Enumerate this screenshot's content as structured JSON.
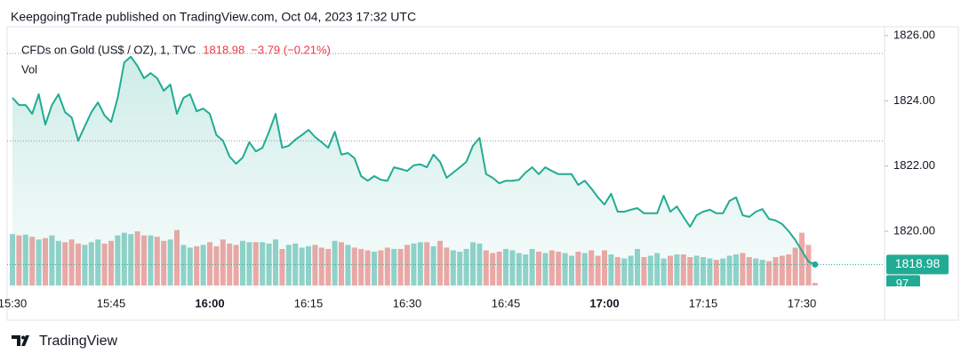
{
  "header": "KeepgoingTrade published on TradingView.com, Oct 04, 2023 17:32 UTC",
  "footer": "TradingView",
  "chart_data": {
    "type": "line",
    "title": "CFDs on Gold (US$ / OZ), 1, TVC",
    "change": "−3.79 (−0.21%)",
    "categories": [
      "15:30",
      null,
      null,
      null,
      null,
      null,
      null,
      null,
      null,
      null,
      null,
      null,
      null,
      null,
      null,
      "15:45",
      null,
      null,
      null,
      null,
      null,
      null,
      null,
      null,
      null,
      null,
      null,
      null,
      null,
      null,
      "16:00",
      null,
      null,
      null,
      null,
      null,
      null,
      null,
      null,
      null,
      null,
      null,
      null,
      null,
      null,
      "16:15",
      null,
      null,
      null,
      null,
      null,
      null,
      null,
      null,
      null,
      null,
      null,
      null,
      null,
      null,
      "16:30",
      null,
      null,
      null,
      null,
      null,
      null,
      null,
      null,
      null,
      null,
      null,
      null,
      null,
      null,
      "16:45",
      null,
      null,
      null,
      null,
      null,
      null,
      null,
      null,
      null,
      null,
      null,
      null,
      null,
      null,
      "17:00",
      null,
      null,
      null,
      null,
      null,
      null,
      null,
      null,
      null,
      null,
      null,
      null,
      null,
      null,
      "17:15",
      null,
      null,
      null,
      null,
      null,
      null,
      null,
      null,
      null,
      null,
      null,
      null,
      null,
      null,
      "17:30",
      null,
      null
    ],
    "series": [
      {
        "name": "CFDs on Gold (US$ / OZ)",
        "color": "#22ab94",
        "values": [
          1824.09,
          1823.87,
          1823.87,
          1823.6,
          1824.2,
          1823.27,
          1823.87,
          1824.2,
          1823.65,
          1823.49,
          1822.78,
          1823.22,
          1823.65,
          1823.95,
          1823.55,
          1823.35,
          1824.09,
          1825.18,
          1825.35,
          1825.07,
          1824.69,
          1824.85,
          1824.69,
          1824.31,
          1824.5,
          1823.6,
          1824.09,
          1824.2,
          1823.68,
          1823.76,
          1823.6,
          1822.95,
          1822.78,
          1822.29,
          1822.07,
          1822.26,
          1822.73,
          1822.45,
          1822.56,
          1823.05,
          1823.6,
          1822.56,
          1822.62,
          1822.81,
          1822.95,
          1823.11,
          1822.89,
          1822.73,
          1822.56,
          1823.05,
          1822.35,
          1822.4,
          1822.24,
          1821.69,
          1821.55,
          1821.69,
          1821.58,
          1821.55,
          1821.96,
          1821.91,
          1821.85,
          1822.02,
          1822.05,
          1821.96,
          1822.35,
          1822.13,
          1821.64,
          1821.8,
          1821.96,
          1822.13,
          1822.62,
          1822.86,
          1821.75,
          1821.64,
          1821.47,
          1821.55,
          1821.55,
          1821.58,
          1821.8,
          1821.96,
          1821.75,
          1821.96,
          1821.85,
          1821.75,
          1821.75,
          1821.75,
          1821.42,
          1821.55,
          1821.31,
          1821.04,
          1820.82,
          1821.15,
          1820.6,
          1820.6,
          1820.66,
          1820.71,
          1820.55,
          1820.55,
          1820.55,
          1821.09,
          1820.6,
          1820.76,
          1820.44,
          1820.14,
          1820.49,
          1820.6,
          1820.66,
          1820.55,
          1820.55,
          1820.93,
          1821.04,
          1820.49,
          1820.44,
          1820.6,
          1820.68,
          1820.38,
          1820.33,
          1820.22,
          1820.0,
          1819.73,
          1819.4,
          1819.07,
          1818.98
        ]
      },
      {
        "name": "Vol",
        "axis": "y2",
        "up_color": "#93d3cb",
        "down_color": "#f2a8a6",
        "values": [
          1900,
          1850,
          1880,
          1800,
          1700,
          1750,
          1850,
          1650,
          1600,
          1700,
          1550,
          1500,
          1600,
          1700,
          1550,
          1650,
          1850,
          1950,
          1900,
          2000,
          1850,
          1850,
          1800,
          1650,
          1700,
          2050,
          1500,
          1400,
          1450,
          1500,
          1600,
          1450,
          1700,
          1550,
          1500,
          1650,
          1600,
          1600,
          1600,
          1550,
          1700,
          1350,
          1500,
          1550,
          1400,
          1450,
          1500,
          1400,
          1350,
          1650,
          1600,
          1500,
          1400,
          1350,
          1300,
          1250,
          1300,
          1400,
          1350,
          1350,
          1500,
          1550,
          1600,
          1600,
          1450,
          1650,
          1400,
          1300,
          1250,
          1350,
          1600,
          1550,
          1300,
          1200,
          1250,
          1350,
          1300,
          1200,
          1150,
          1350,
          1250,
          1200,
          1300,
          1250,
          1200,
          1100,
          1250,
          1200,
          1300,
          1100,
          1300,
          1150,
          1050,
          1000,
          1100,
          1350,
          1050,
          1100,
          1200,
          1000,
          1100,
          1150,
          1150,
          1050,
          1100,
          1050,
          1000,
          950,
          1000,
          1100,
          1150,
          1200,
          1050,
          1000,
          950,
          900,
          1050,
          1100,
          1150,
          1400,
          1950,
          1500,
          97
        ]
      }
    ],
    "reference_lines": [
      1825.45,
      1822.77
    ],
    "ylim": [
      1818.0,
      1826.0
    ],
    "yticks": [
      {
        "value": 1820,
        "label": "1820.00"
      },
      {
        "value": 1822,
        "label": "1822.00"
      },
      {
        "value": 1824,
        "label": "1824.00"
      },
      {
        "value": 1826,
        "label": "1826.00"
      }
    ],
    "y2lim": [
      0,
      2300
    ],
    "down_color": "#f23645"
  }
}
